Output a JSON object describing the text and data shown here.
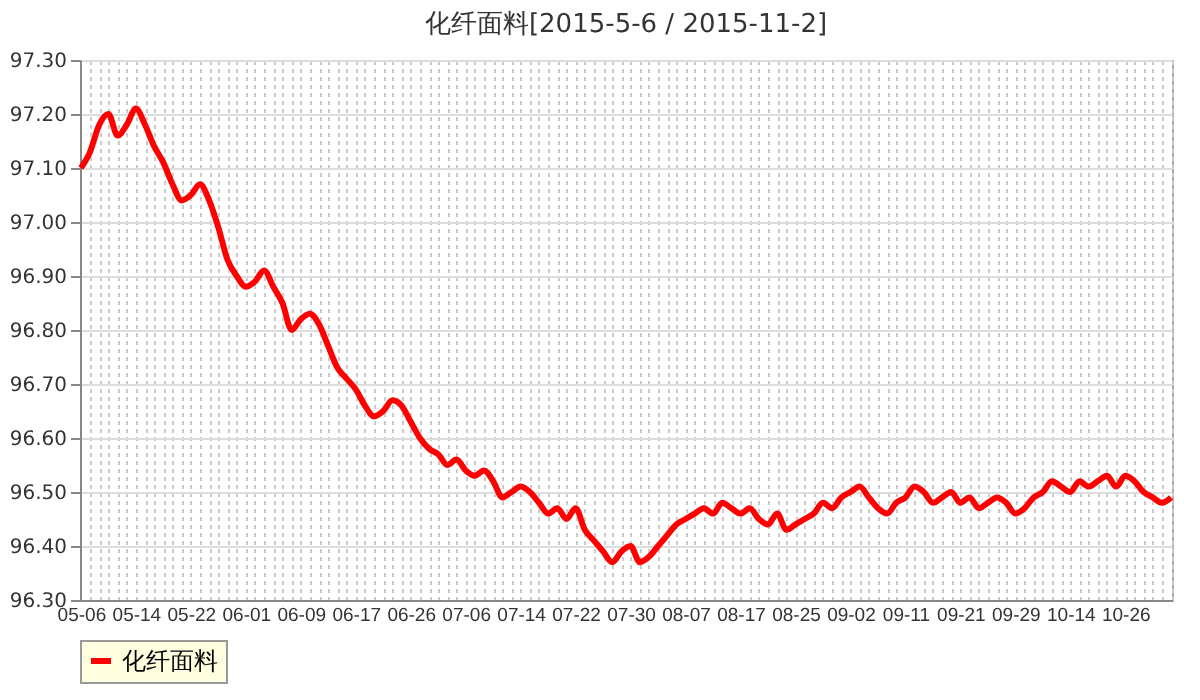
{
  "chart_data": {
    "type": "line",
    "title": "化纤面料[2015-5-6 / 2015-11-2]",
    "categories": [
      "05-06",
      null,
      null,
      null,
      null,
      null,
      "05-14",
      null,
      null,
      null,
      null,
      null,
      "05-22",
      null,
      null,
      null,
      null,
      null,
      "06-01",
      null,
      null,
      null,
      null,
      null,
      "06-09",
      null,
      null,
      null,
      null,
      null,
      "06-17",
      null,
      null,
      null,
      null,
      null,
      "06-26",
      null,
      null,
      null,
      null,
      null,
      "07-06",
      null,
      null,
      null,
      null,
      null,
      "07-14",
      null,
      null,
      null,
      null,
      null,
      "07-22",
      null,
      null,
      null,
      null,
      null,
      "07-30",
      null,
      null,
      null,
      null,
      null,
      "08-07",
      null,
      null,
      null,
      null,
      null,
      "08-17",
      null,
      null,
      null,
      null,
      null,
      "08-25",
      null,
      null,
      null,
      null,
      null,
      "09-02",
      null,
      null,
      null,
      null,
      null,
      "09-11",
      null,
      null,
      null,
      null,
      null,
      "09-21",
      null,
      null,
      null,
      null,
      null,
      "09-29",
      null,
      null,
      null,
      null,
      null,
      "10-14",
      null,
      null,
      null,
      null,
      null,
      "10-26",
      null,
      null,
      null,
      null,
      null
    ],
    "series": [
      {
        "name": "化纤面料",
        "color": "#ff0000",
        "values": [
          97.1,
          97.13,
          97.18,
          97.2,
          97.16,
          97.18,
          97.21,
          97.18,
          97.14,
          97.11,
          97.07,
          97.04,
          97.05,
          97.07,
          97.04,
          96.99,
          96.93,
          96.9,
          96.88,
          96.89,
          96.91,
          96.88,
          96.85,
          96.8,
          96.82,
          96.83,
          96.81,
          96.77,
          96.73,
          96.71,
          96.69,
          96.66,
          96.64,
          96.65,
          96.67,
          96.66,
          96.63,
          96.6,
          96.58,
          96.57,
          96.55,
          96.56,
          96.54,
          96.53,
          96.54,
          96.52,
          96.49,
          96.5,
          96.51,
          96.5,
          96.48,
          96.46,
          96.47,
          96.45,
          96.47,
          96.43,
          96.41,
          96.39,
          96.37,
          96.39,
          96.4,
          96.37,
          96.38,
          96.4,
          96.42,
          96.44,
          96.45,
          96.46,
          96.47,
          96.46,
          96.48,
          96.47,
          96.46,
          96.47,
          96.45,
          96.44,
          96.46,
          96.43,
          96.44,
          96.45,
          96.46,
          96.48,
          96.47,
          96.49,
          96.5,
          96.51,
          96.49,
          96.47,
          96.46,
          96.48,
          96.49,
          96.51,
          96.5,
          96.48,
          96.49,
          96.5,
          96.48,
          96.49,
          96.47,
          96.48,
          96.49,
          96.48,
          96.46,
          96.47,
          96.49,
          96.5,
          96.52,
          96.51,
          96.5,
          96.52,
          96.51,
          96.52,
          96.53,
          96.51,
          96.53,
          96.52,
          96.5,
          96.49,
          96.48,
          96.49
        ]
      }
    ],
    "ylim": [
      96.3,
      97.3
    ],
    "yticks": [
      {
        "value": 96.3,
        "label": "96.30"
      },
      {
        "value": 96.4,
        "label": "96.40"
      },
      {
        "value": 96.5,
        "label": "96.50"
      },
      {
        "value": 96.6,
        "label": "96.60"
      },
      {
        "value": 96.7,
        "label": "96.70"
      },
      {
        "value": 96.8,
        "label": "96.80"
      },
      {
        "value": 96.9,
        "label": "96.90"
      },
      {
        "value": 97.0,
        "label": "97.00"
      },
      {
        "value": 97.1,
        "label": "97.10"
      },
      {
        "value": 97.2,
        "label": "97.20"
      },
      {
        "value": 97.3,
        "label": "97.30"
      }
    ],
    "grid": true,
    "legend": "bottom",
    "line_style": "solid",
    "marker": "none"
  }
}
